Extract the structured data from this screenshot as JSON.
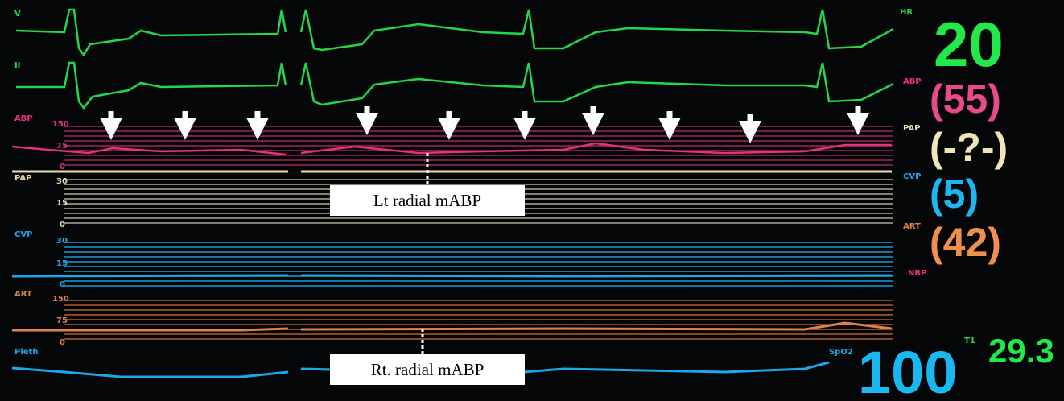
{
  "leads": [
    {
      "label": "V"
    },
    {
      "label": "II"
    }
  ],
  "channels": [
    {
      "label": "ABP",
      "scale": [
        150,
        75,
        0
      ]
    },
    {
      "label": "PAP",
      "scale": [
        30,
        15,
        0
      ]
    },
    {
      "label": "CVP",
      "scale": [
        30,
        15,
        0
      ]
    },
    {
      "label": "ART",
      "scale": [
        150,
        75,
        0
      ]
    }
  ],
  "pleth": {
    "label": "Pleth"
  },
  "vitals": [
    {
      "label": "HR",
      "value": "20"
    },
    {
      "label": "ABP",
      "value": "(55)"
    },
    {
      "label": "PAP",
      "value": "(-?-)"
    },
    {
      "label": "CVP",
      "value": "(5)"
    },
    {
      "label": "ART",
      "value": "(42)"
    },
    {
      "label": "NBP"
    }
  ],
  "spo2": {
    "label": "SpO2",
    "value": "100"
  },
  "temp": {
    "label": "T1",
    "value": "29.3"
  },
  "annotations": [
    "Lt radial mABP",
    "Rt. radial mABP"
  ]
}
